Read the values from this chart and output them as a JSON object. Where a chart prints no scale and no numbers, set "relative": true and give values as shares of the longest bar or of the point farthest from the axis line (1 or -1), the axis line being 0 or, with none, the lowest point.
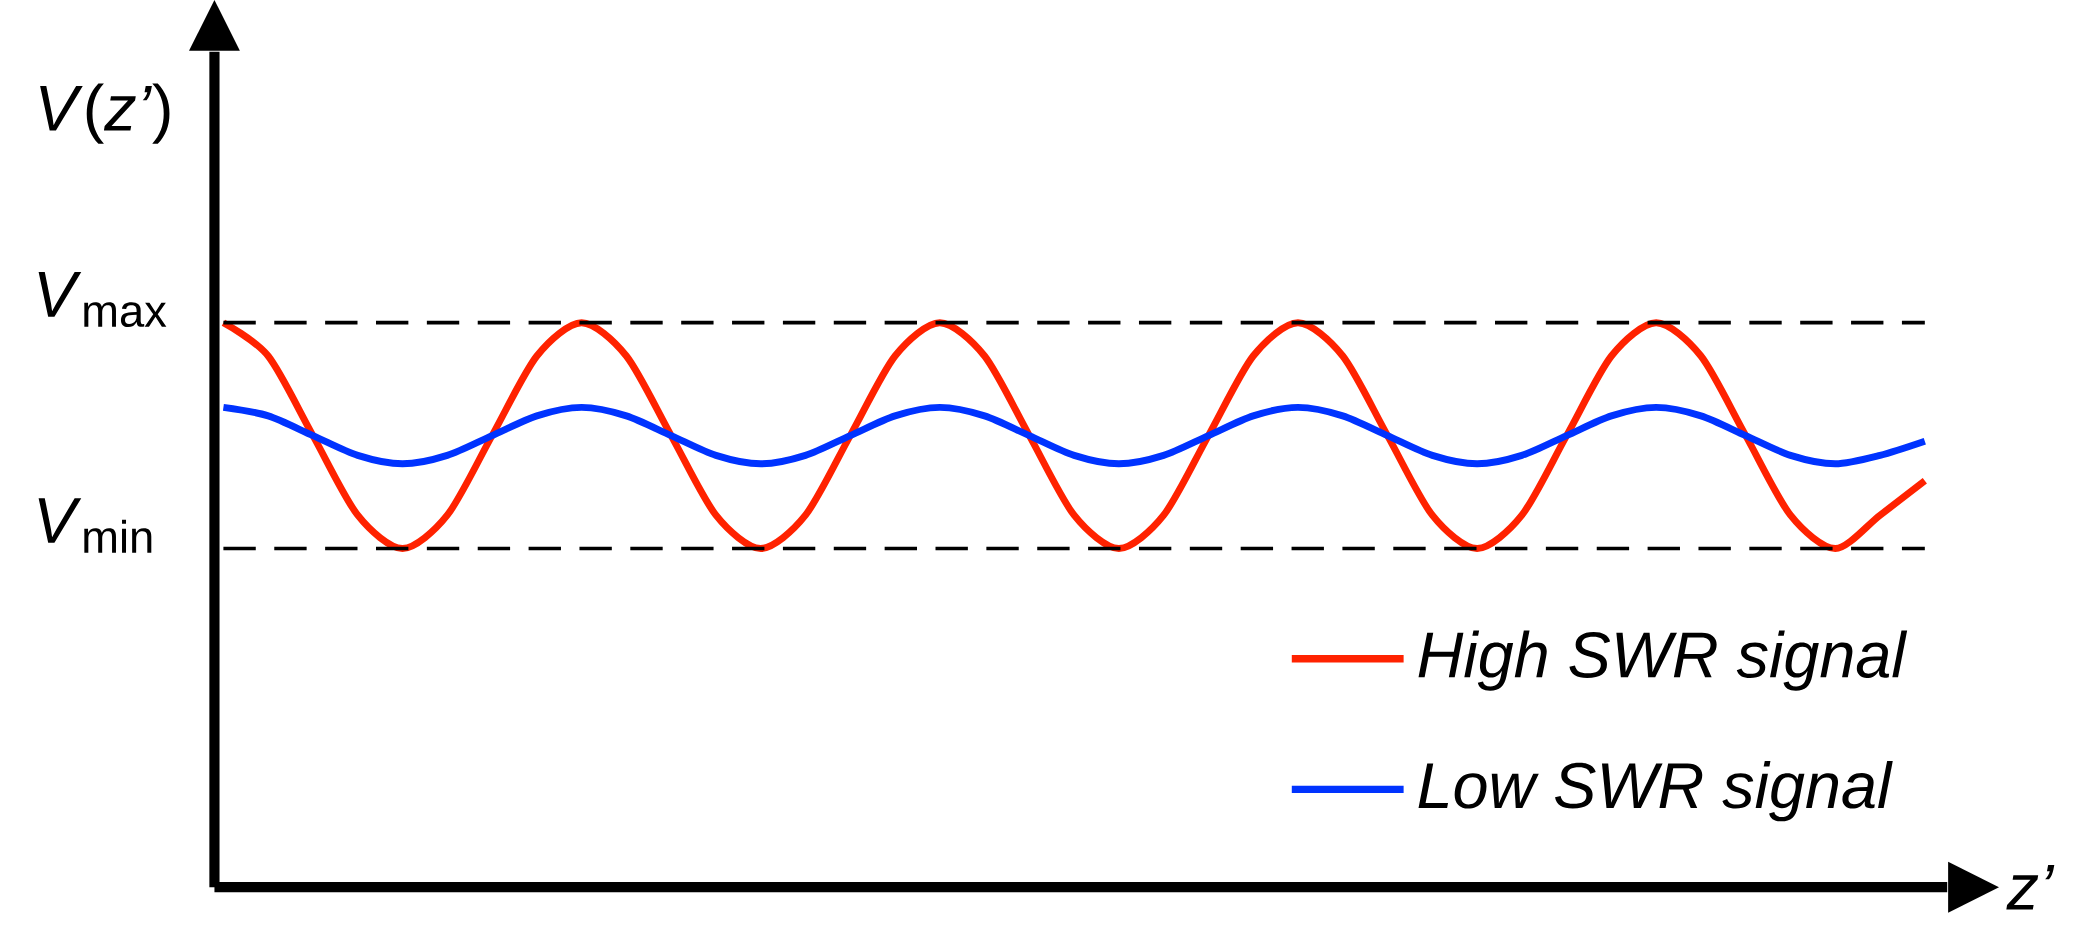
{
  "chart_data": {
    "type": "line",
    "relative": true,
    "xlabel": "z’",
    "ylabel": "*V*(*z’*)",
    "categories": [
      null,
      null,
      null,
      null,
      null,
      null,
      null,
      null,
      null,
      null,
      null,
      null,
      null,
      null,
      null,
      null,
      null,
      null,
      null,
      null,
      null,
      null,
      null,
      null,
      null,
      null,
      null,
      null,
      null,
      null,
      null,
      null,
      null,
      null,
      null,
      null,
      null,
      null,
      null
    ],
    "series": [
      {
        "name": "High SWR signal",
        "color": "#ff2200",
        "values": [
          1.0,
          0.941,
          0.8,
          0.659,
          0.6,
          0.659,
          0.8,
          0.941,
          1.0,
          0.941,
          0.8,
          0.659,
          0.6,
          0.659,
          0.8,
          0.941,
          1.0,
          0.941,
          0.8,
          0.659,
          0.6,
          0.659,
          0.8,
          0.941,
          1.0,
          0.941,
          0.8,
          0.659,
          0.6,
          0.659,
          0.8,
          0.941,
          1.0,
          0.941,
          0.8,
          0.659,
          0.6,
          0.659,
          0.72
        ]
      },
      {
        "name": "Low SWR signal",
        "color": "#0033ff",
        "values": [
          0.85,
          0.835,
          0.8,
          0.765,
          0.75,
          0.765,
          0.8,
          0.835,
          0.85,
          0.835,
          0.8,
          0.765,
          0.75,
          0.765,
          0.8,
          0.835,
          0.85,
          0.835,
          0.8,
          0.765,
          0.75,
          0.765,
          0.8,
          0.835,
          0.85,
          0.835,
          0.8,
          0.765,
          0.75,
          0.765,
          0.8,
          0.835,
          0.85,
          0.835,
          0.8,
          0.765,
          0.75,
          0.765,
          0.79
        ]
      }
    ],
    "ref_lines": [
      {
        "axis": "y",
        "value": 1.0,
        "label": "*V*$_{max}$",
        "color": "#000000",
        "line_style": "dashed"
      },
      {
        "axis": "y",
        "value": 0.6,
        "label": "*V*$_{min}$",
        "color": "#000000",
        "line_style": "dashed"
      }
    ],
    "legend": "bottom right",
    "marker": "none",
    "line_style": "solid"
  }
}
